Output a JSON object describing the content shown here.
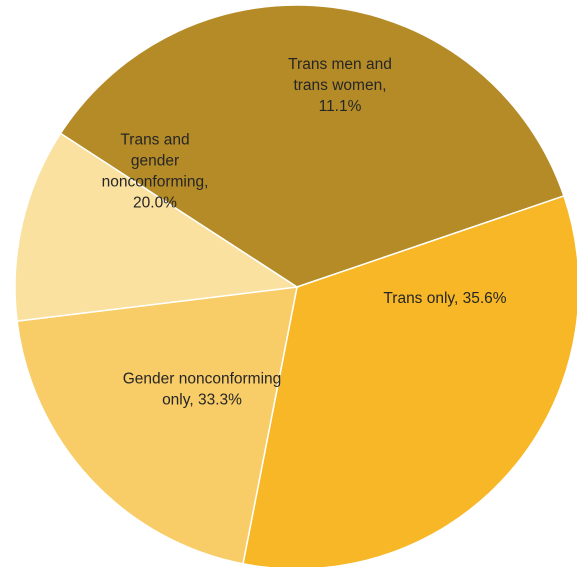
{
  "chart_data": {
    "type": "pie",
    "title": "",
    "slices": [
      {
        "label_lines": [
          "Trans only, 35.6%"
        ],
        "value": 35.6,
        "color": "#B48B26"
      },
      {
        "label_lines": [
          "Gender nonconforming",
          "only, 33.3%"
        ],
        "value": 33.3,
        "color": "#F7B726"
      },
      {
        "label_lines": [
          "Trans and",
          "gender",
          "nonconforming,",
          "20.0%"
        ],
        "value": 20.0,
        "color": "#F8CC66"
      },
      {
        "label_lines": [
          "Trans men and",
          "trans women,",
          "11.1%"
        ],
        "value": 11.1,
        "color": "#FAE1A0"
      }
    ]
  }
}
